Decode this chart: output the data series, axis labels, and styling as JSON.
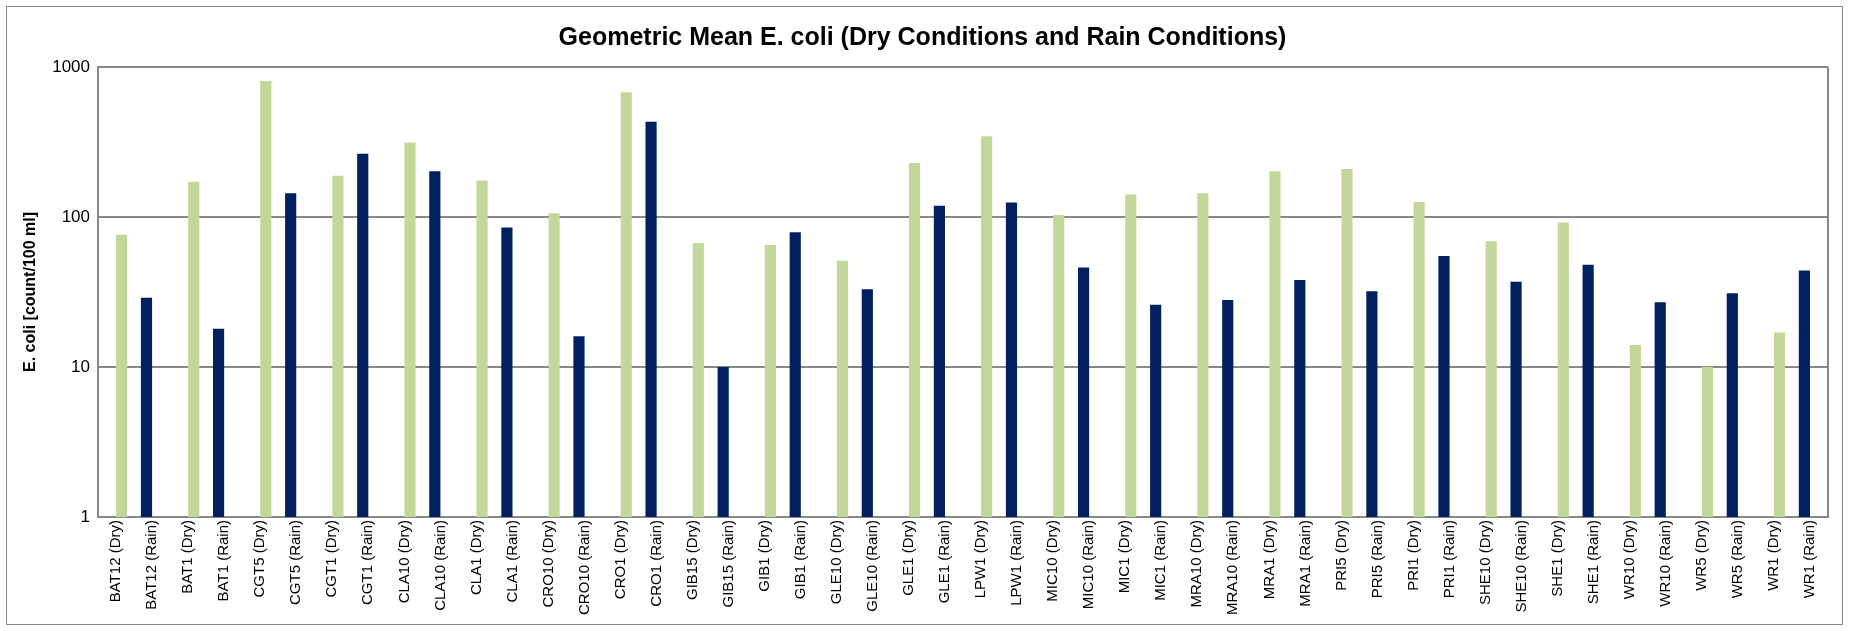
{
  "chart_data": {
    "type": "bar",
    "title": "Geometric Mean E. coli (Dry Conditions and Rain Conditions)",
    "ylabel": "E. coli [count/100 ml]",
    "categories": [
      "BAT12 (Dry)",
      "BAT12 (Rain)",
      "BAT1 (Dry)",
      "BAT1 (Rain)",
      "CGT5 (Dry)",
      "CGT5 (Rain)",
      "CGT1 (Dry)",
      "CGT1 (Rain)",
      "CLA10 (Dry)",
      "CLA10 (Rain)",
      "CLA1 (Dry)",
      "CLA1 (Rain)",
      "CRO10 (Dry)",
      "CRO10 (Rain)",
      "CRO1 (Dry)",
      "CRO1 (Rain)",
      "GIB15 (Dry)",
      "GIB15 (Rain)",
      "GIB1 (Dry)",
      "GIB1 (Rain)",
      "GLE10 (Dry)",
      "GLE10 (Rain)",
      "GLE1 (Dry)",
      "GLE1 (Rain)",
      "LPW1 (Dry)",
      "LPW1 (Rain)",
      "MIC10 (Dry)",
      "MIC10 (Rain)",
      "MIC1 (Dry)",
      "MIC1 (Rain)",
      "MRA10 (Dry)",
      "MRA10 (Rain)",
      "MRA1 (Dry)",
      "MRA1 (Rain)",
      "PRI5 (Dry)",
      "PRI5 (Rain)",
      "PRI1 (Dry)",
      "PRI1 (Rain)",
      "SHE10 (Dry)",
      "SHE10 (Rain)",
      "SHE1 (Dry)",
      "SHE1 (Rain)",
      "WR10 (Dry)",
      "WR10 (Rain)",
      "WR5 (Dry)",
      "WR5 (Rain)",
      "WR1 (Dry)",
      "WR1 (Rain)"
    ],
    "series": [
      {
        "color": "#c4d79b",
        "values": [
          76,
          null,
          172,
          null,
          806,
          null,
          188,
          null,
          314,
          null,
          175,
          null,
          106,
          null,
          678,
          null,
          67,
          null,
          65,
          null,
          51,
          null,
          229,
          null,
          345,
          null,
          103,
          null,
          141,
          null,
          144,
          null,
          202,
          null,
          209,
          null,
          126,
          null,
          69,
          null,
          92,
          null,
          14,
          null,
          10,
          null,
          17,
          null
        ]
      },
      {
        "color": "#002060",
        "values": [
          null,
          29,
          null,
          18,
          null,
          144,
          null,
          264,
          null,
          202,
          null,
          85,
          null,
          16,
          null,
          431,
          null,
          10,
          null,
          79,
          null,
          33,
          null,
          119,
          null,
          125,
          null,
          46,
          null,
          26,
          null,
          28,
          null,
          38,
          null,
          32,
          null,
          55,
          null,
          37,
          null,
          48,
          null,
          27,
          null,
          31,
          null,
          44
        ]
      }
    ],
    "ylim": [
      1,
      1000
    ],
    "yticks": [
      1,
      10,
      100,
      1000
    ],
    "log": true,
    "grid": "y"
  }
}
